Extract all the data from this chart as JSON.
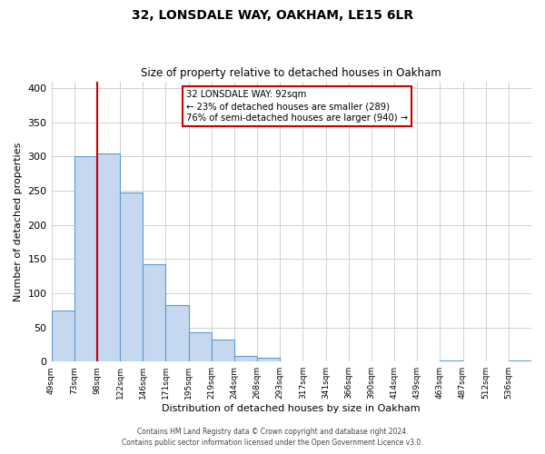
{
  "title": "32, LONSDALE WAY, OAKHAM, LE15 6LR",
  "subtitle": "Size of property relative to detached houses in Oakham",
  "xlabel": "Distribution of detached houses by size in Oakham",
  "ylabel": "Number of detached properties",
  "bin_labels": [
    "49sqm",
    "73sqm",
    "98sqm",
    "122sqm",
    "146sqm",
    "171sqm",
    "195sqm",
    "219sqm",
    "244sqm",
    "268sqm",
    "293sqm",
    "317sqm",
    "341sqm",
    "366sqm",
    "390sqm",
    "414sqm",
    "439sqm",
    "463sqm",
    "487sqm",
    "512sqm",
    "536sqm"
  ],
  "bar_heights": [
    75,
    300,
    305,
    248,
    143,
    83,
    43,
    32,
    8,
    6,
    0,
    0,
    0,
    0,
    0,
    0,
    0,
    2,
    0,
    0,
    2
  ],
  "bar_color": "#c5d8f0",
  "bar_edge_color": "#5b9bd5",
  "property_line_label": "32 LONSDALE WAY: 92sqm",
  "annotation_line1": "← 23% of detached houses are smaller (289)",
  "annotation_line2": "76% of semi-detached houses are larger (940) →",
  "annotation_box_color": "#cc0000",
  "vline_color": "#cc0000",
  "ylim": [
    0,
    410
  ],
  "yticks": [
    0,
    50,
    100,
    150,
    200,
    250,
    300,
    350,
    400
  ],
  "footer_line1": "Contains HM Land Registry data © Crown copyright and database right 2024.",
  "footer_line2": "Contains public sector information licensed under the Open Government Licence v3.0.",
  "background_color": "#ffffff",
  "grid_color": "#d0d0d0"
}
